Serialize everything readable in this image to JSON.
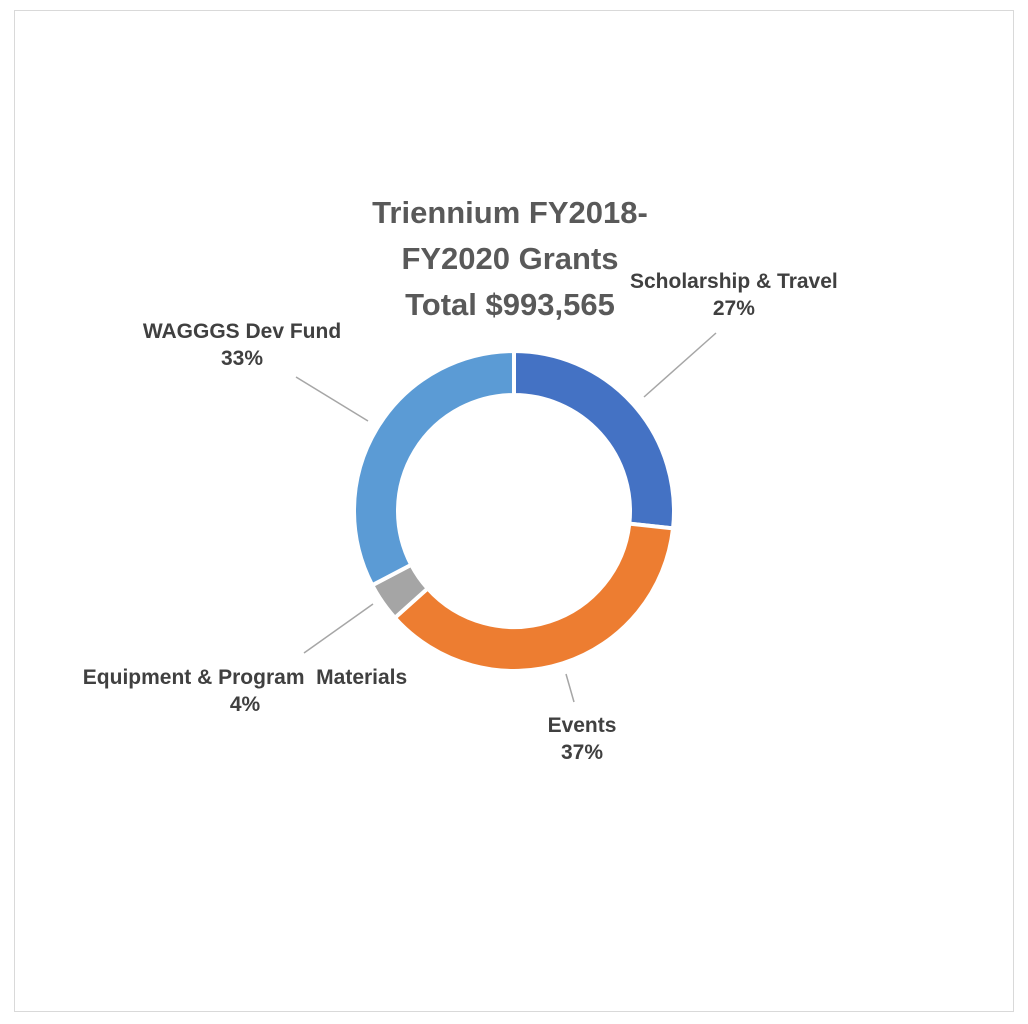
{
  "chart_data": {
    "type": "pie",
    "title_lines": [
      "Triennium FY2018-",
      "FY2020 Grants",
      "Total $993,565"
    ],
    "slices": [
      {
        "name": "Scholarship & Travel",
        "value": 27,
        "label": "27%",
        "color": "#4472C4"
      },
      {
        "name": "Events",
        "value": 37,
        "label": "37%",
        "color": "#ED7D31"
      },
      {
        "name": "Equipment & Program  Materials",
        "value": 4,
        "label": "4%",
        "color": "#A5A5A5"
      },
      {
        "name": "WAGGGS Dev Fund",
        "value": 33,
        "label": "33%",
        "color": "#5B9BD5"
      }
    ]
  }
}
